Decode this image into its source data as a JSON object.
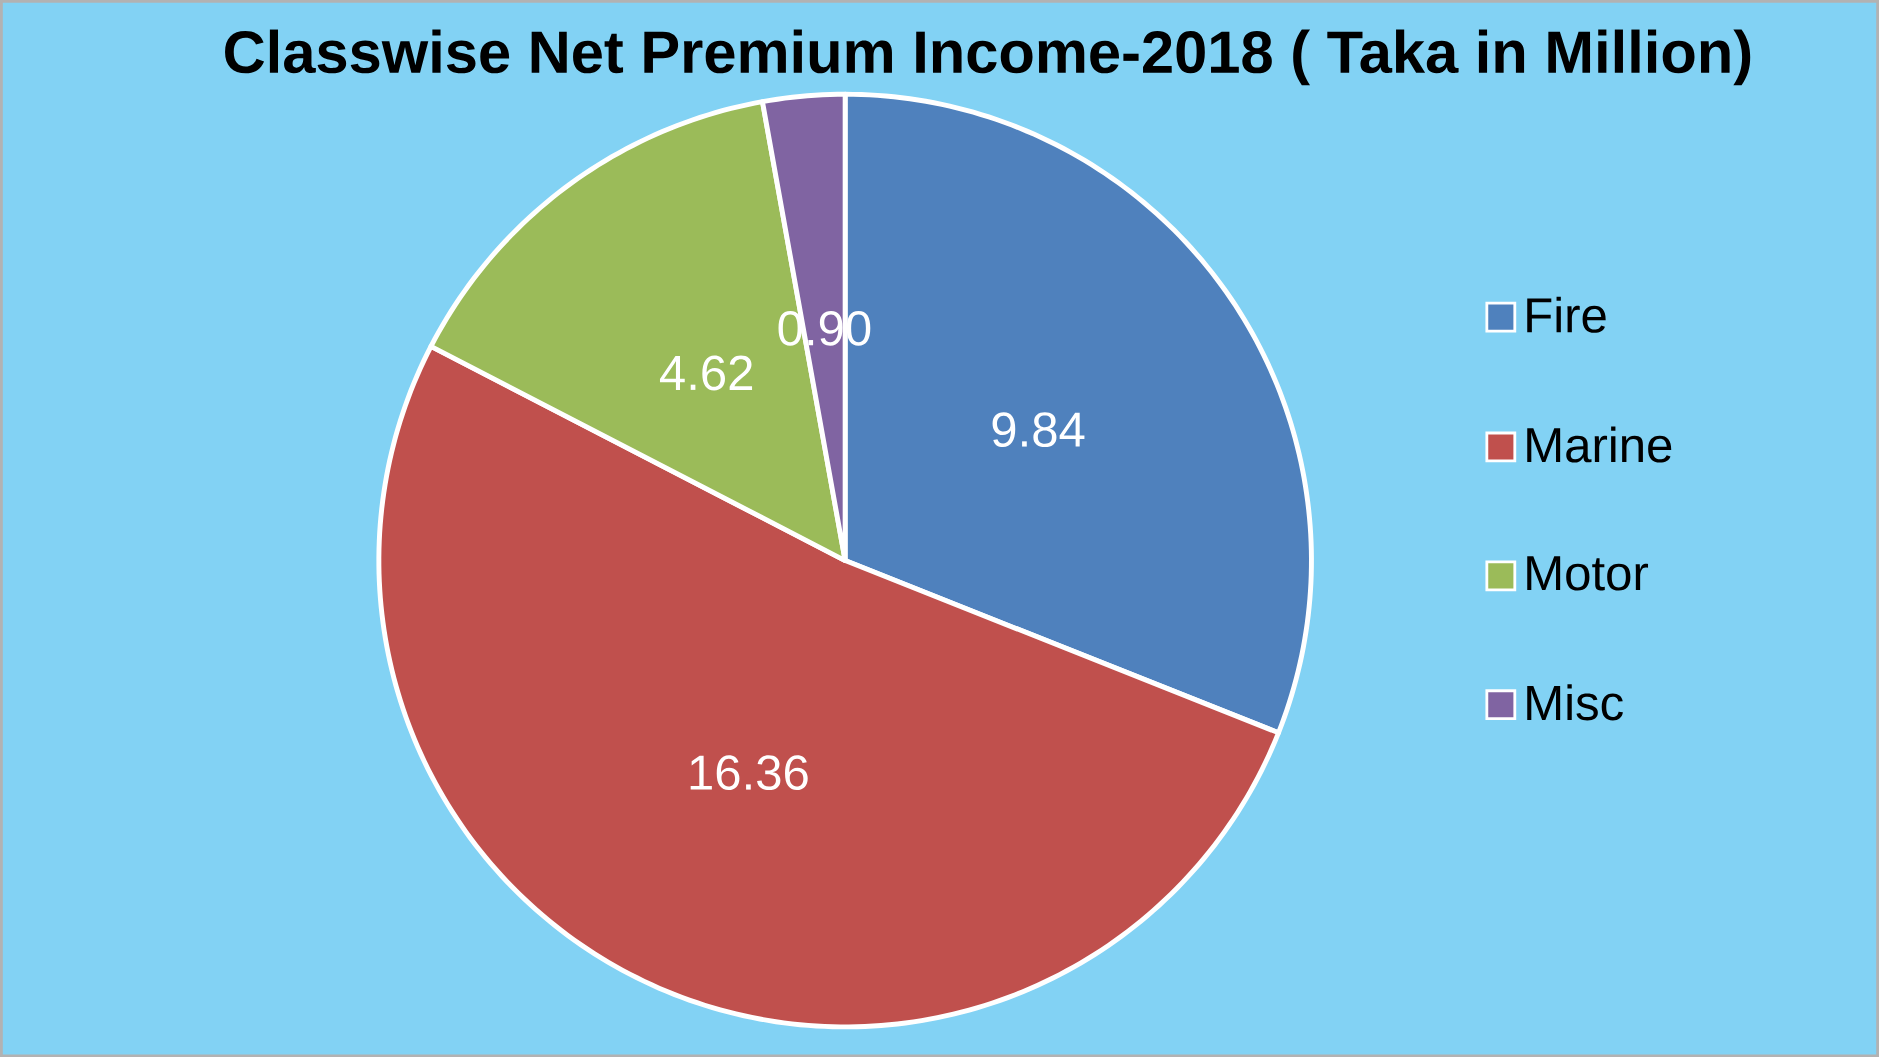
{
  "chart_data": {
    "type": "pie",
    "title": "Classwise Net Premium Income-2018 ( Taka in Million)",
    "categories": [
      "Fire",
      "Marine",
      "Motor",
      "Misc"
    ],
    "values": [
      9.84,
      16.36,
      4.62,
      0.9
    ],
    "colors": [
      "#4f81bd",
      "#c0504d",
      "#9bbb59",
      "#8064a2"
    ],
    "value_labels": [
      "9.84",
      "16.36",
      "4.62",
      "0.90"
    ],
    "legend": "right"
  }
}
